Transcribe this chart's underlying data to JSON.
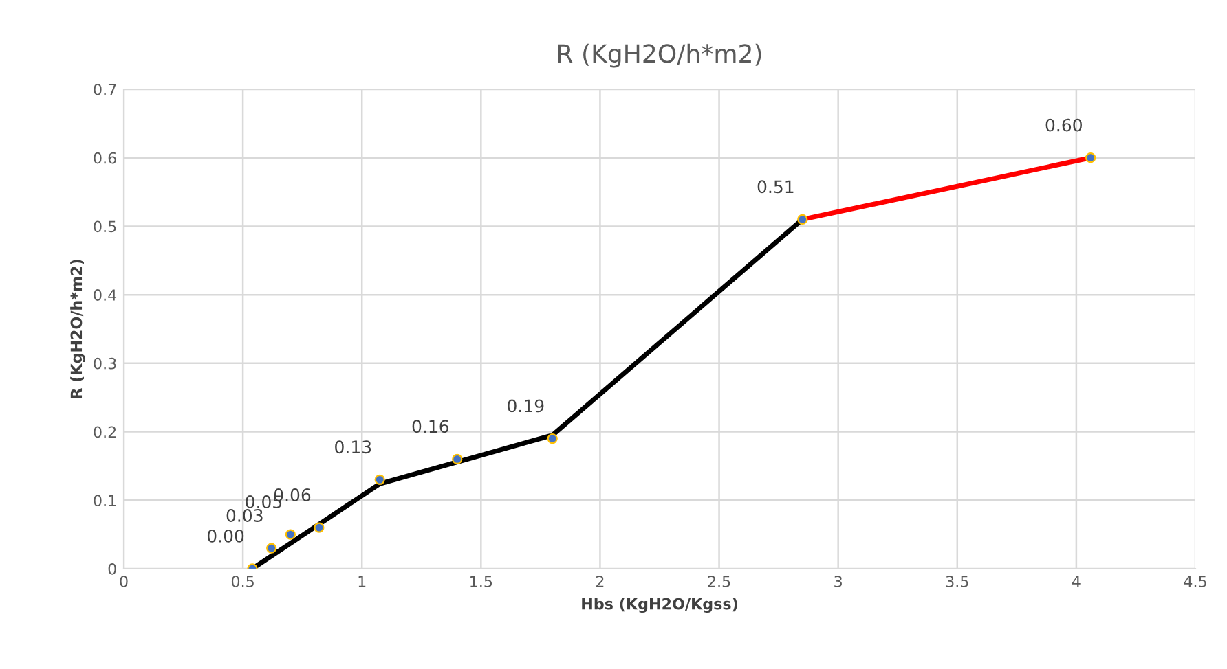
{
  "chart_data": {
    "type": "scatter",
    "title": "R (KgH2O/h*m2)",
    "xlabel": "Hbs (KgH2O/Kgss)",
    "ylabel": "R (KgH2O/h*m2)",
    "x": [
      0.54,
      0.62,
      0.7,
      0.82,
      1.075,
      1.4,
      1.8,
      2.85,
      4.06
    ],
    "series": [
      {
        "marker": "circle",
        "color": "#4472c4",
        "values": [
          0.0,
          0.03,
          0.05,
          0.06,
          0.13,
          0.16,
          0.19,
          0.51,
          0.6
        ],
        "value_labels": [
          "0.00",
          "0.03",
          "0.05",
          "0.06",
          "0.13",
          "0.16",
          "0.19",
          "0.51",
          "0.60"
        ]
      },
      {
        "type": "line",
        "color": "#000000",
        "x": [
          0.54,
          1.075,
          1.8,
          2.85
        ],
        "values": [
          0.0,
          0.124,
          0.195,
          0.51
        ]
      },
      {
        "type": "line",
        "color": "#ff0000",
        "x": [
          2.85,
          4.06
        ],
        "values": [
          0.51,
          0.6
        ]
      }
    ],
    "xlim": [
      0,
      4.5
    ],
    "xticks": [
      0,
      0.5,
      1,
      1.5,
      2,
      2.5,
      3,
      3.5,
      4,
      4.5
    ],
    "ylim": [
      0,
      0.7
    ],
    "yticks": [
      0,
      0.1,
      0.2,
      0.3,
      0.4,
      0.5,
      0.6,
      0.7
    ],
    "grid": true
  }
}
